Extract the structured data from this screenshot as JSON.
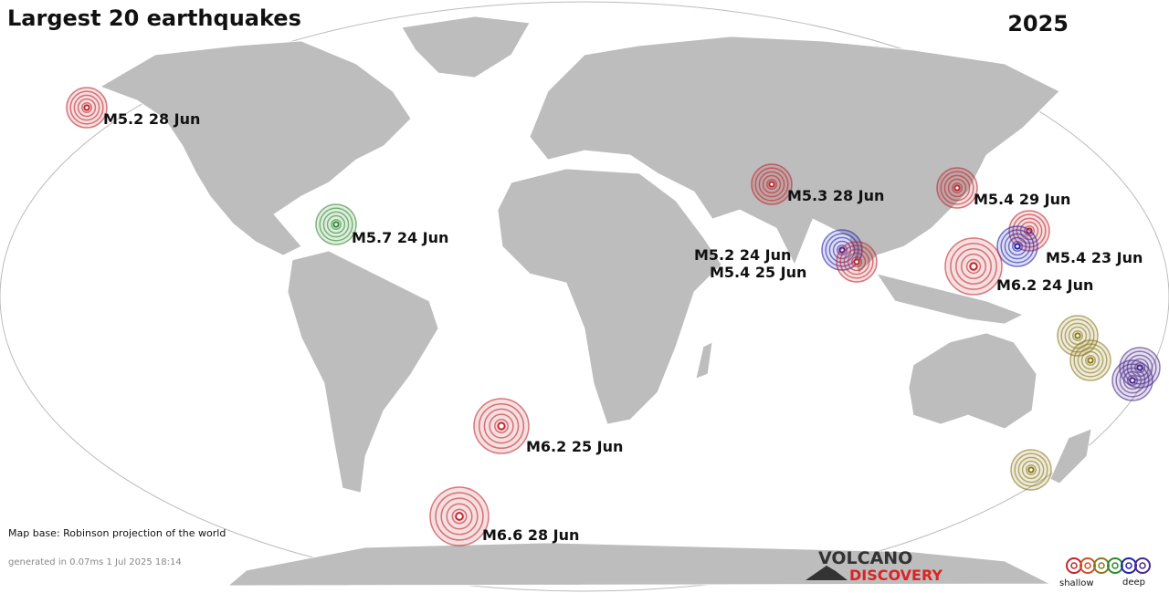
{
  "header": {
    "title": "Largest 20 earthquakes",
    "year": "2025"
  },
  "earthquakes": [
    {
      "label": "M5.2 28 Jun"
    },
    {
      "label": "M5.7 24 Jun"
    },
    {
      "label": "M5.3 28 Jun"
    },
    {
      "label": "M5.4 29 Jun"
    },
    {
      "label": "M5.2 24 Jun"
    },
    {
      "label": "M5.4 25 Jun"
    },
    {
      "label": "M5.4 23 Jun"
    },
    {
      "label": "M6.2 24 Jun"
    },
    {
      "label": "M6.2 25 Jun"
    },
    {
      "label": "M6.6 28 Jun"
    }
  ],
  "footer": {
    "map_base": "Map base: Robinson projection of the world",
    "generated": "generated in 0.07ms  1 Jul 2025 18:14"
  },
  "logo": {
    "line1": "VOLCANO",
    "line2": "DISCOVERY"
  },
  "legend": {
    "shallow": "shallow",
    "deep": "deep"
  }
}
